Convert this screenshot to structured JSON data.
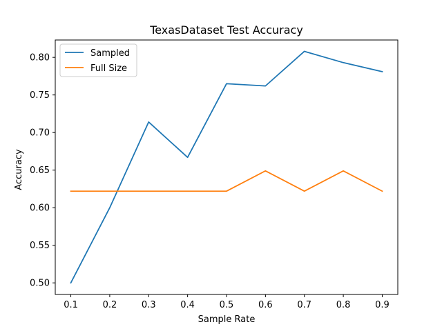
{
  "chart_data": {
    "type": "line",
    "title": "TexasDataset Test Accuracy",
    "xlabel": "Sample Rate",
    "ylabel": "Accuracy",
    "x": [
      0.1,
      0.2,
      0.3,
      0.4,
      0.5,
      0.6,
      0.7,
      0.8,
      0.9
    ],
    "xlim": [
      0.06,
      0.94
    ],
    "ylim": [
      0.4846,
      0.8231
    ],
    "xticks": [
      0.1,
      0.2,
      0.3,
      0.4,
      0.5,
      0.6,
      0.7,
      0.8,
      0.9
    ],
    "xtick_labels": [
      "0.1",
      "0.2",
      "0.3",
      "0.4",
      "0.5",
      "0.6",
      "0.7",
      "0.8",
      "0.9"
    ],
    "yticks": [
      0.5,
      0.55,
      0.6,
      0.65,
      0.7,
      0.75,
      0.8
    ],
    "ytick_labels": [
      "0.50",
      "0.55",
      "0.60",
      "0.65",
      "0.70",
      "0.75",
      "0.80"
    ],
    "grid": false,
    "legend_position": "top-left",
    "series": [
      {
        "name": "Sampled",
        "color": "#1f77b4",
        "values": [
          0.5,
          0.6,
          0.714,
          0.667,
          0.765,
          0.762,
          0.808,
          0.793,
          0.781
        ]
      },
      {
        "name": "Full Size",
        "color": "#ff7f0e",
        "values": [
          0.622,
          0.622,
          0.622,
          0.622,
          0.622,
          0.649,
          0.622,
          0.649,
          0.622
        ]
      }
    ]
  }
}
